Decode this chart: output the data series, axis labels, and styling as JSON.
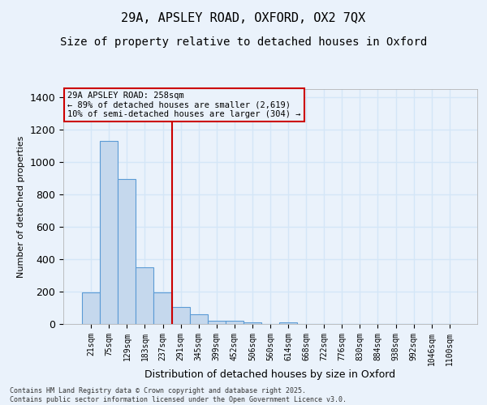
{
  "title1": "29A, APSLEY ROAD, OXFORD, OX2 7QX",
  "title2": "Size of property relative to detached houses in Oxford",
  "xlabel": "Distribution of detached houses by size in Oxford",
  "ylabel": "Number of detached properties",
  "categories": [
    "21sqm",
    "75sqm",
    "129sqm",
    "183sqm",
    "237sqm",
    "291sqm",
    "345sqm",
    "399sqm",
    "452sqm",
    "506sqm",
    "560sqm",
    "614sqm",
    "668sqm",
    "722sqm",
    "776sqm",
    "830sqm",
    "884sqm",
    "938sqm",
    "992sqm",
    "1046sqm",
    "1100sqm"
  ],
  "values": [
    193,
    1130,
    893,
    352,
    193,
    103,
    62,
    22,
    20,
    12,
    0,
    10,
    0,
    0,
    0,
    0,
    0,
    0,
    0,
    0,
    0
  ],
  "bar_color": "#c5d8ed",
  "bar_edge_color": "#5b9bd5",
  "vline_color": "#cc0000",
  "vline_x": 4.5,
  "annotation_text": "29A APSLEY ROAD: 258sqm\n← 89% of detached houses are smaller (2,619)\n10% of semi-detached houses are larger (304) →",
  "annotation_box_color": "#cc0000",
  "background_color": "#eaf2fb",
  "grid_color": "#d4e6f7",
  "ylim": [
    0,
    1450
  ],
  "yticks": [
    0,
    200,
    400,
    600,
    800,
    1000,
    1200,
    1400
  ],
  "footnote": "Contains HM Land Registry data © Crown copyright and database right 2025.\nContains public sector information licensed under the Open Government Licence v3.0.",
  "title_fontsize": 11,
  "subtitle_fontsize": 10
}
